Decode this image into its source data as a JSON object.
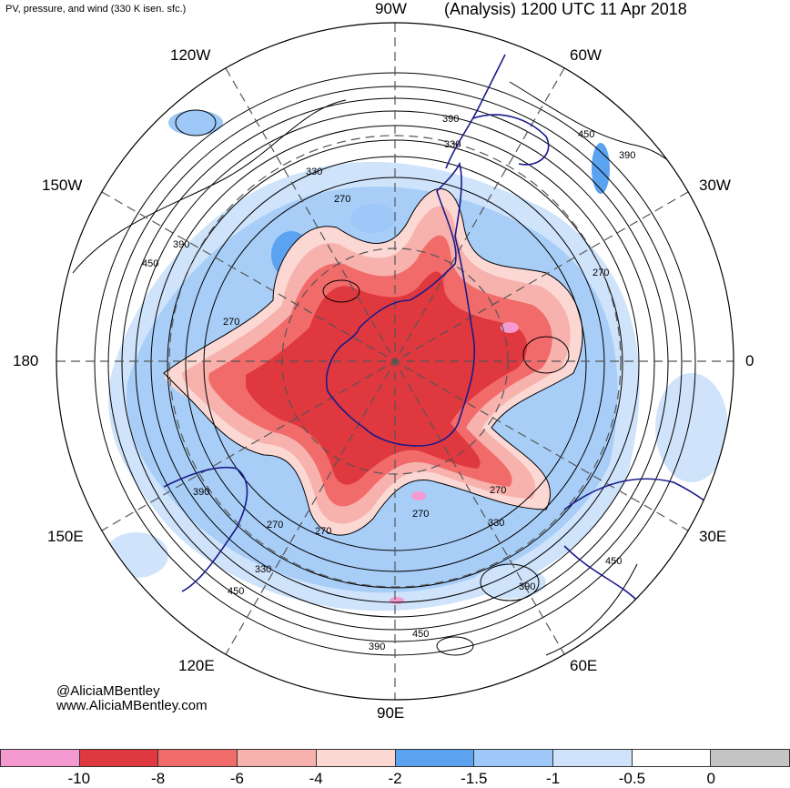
{
  "header": {
    "subtitle": "PV, pressure, and wind (330 K isen. sfc.)",
    "title": "(Analysis) 1200 UTC 11 Apr 2018"
  },
  "map": {
    "projection": "south-polar-stereographic",
    "longitude_labels": {
      "top": "90W",
      "top_right_1": "60W",
      "top_right_2": "30W",
      "right": "0",
      "bottom_right_1": "30E",
      "bottom_right_2": "60E",
      "bottom": "90E",
      "bottom_left_1": "120E",
      "bottom_left_2": "150E",
      "left": "180",
      "top_left_1": "150W",
      "top_left_2": "120W"
    },
    "contour_labels": [
      "390",
      "330",
      "450",
      "390",
      "330",
      "270",
      "390",
      "450",
      "270",
      "270",
      "390",
      "270",
      "270",
      "330",
      "270",
      "330",
      "450",
      "390",
      "390",
      "450",
      "270",
      "450"
    ],
    "colors": {
      "pv_strong": "#e0383f",
      "pv_mid": "#f26b6b",
      "pv_light": "#f7b2ad",
      "pv_faint": "#fbd8d3",
      "pos_blue_dark": "#5ba3f0",
      "pos_blue_mid": "#9ec8f7",
      "pos_blue_light": "#cfe3fa",
      "contour": "#000000",
      "coast": "#1b1a8a"
    }
  },
  "credits": {
    "handle": "@AliciaMBentley",
    "url": "www.AliciaMBentley.com"
  },
  "colorbar": {
    "colors": [
      "#f59ad1",
      "#e0383f",
      "#f26b6b",
      "#f7b2ad",
      "#fbd8d3",
      "#5ba3f0",
      "#9ec8f7",
      "#cfe3fa",
      "#ffffff",
      "#c4c4c4"
    ],
    "tick_labels": [
      "-10",
      "-8",
      "-6",
      "-4",
      "-2",
      "-1.5",
      "-1",
      "-0.5",
      "0"
    ]
  }
}
